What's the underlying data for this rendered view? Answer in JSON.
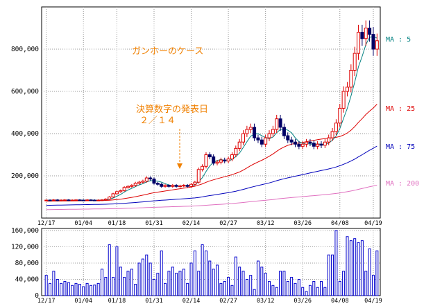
{
  "chart_data": {
    "type": "candlestick",
    "title": "ガンホーのケース",
    "annotation": {
      "lines": [
        "決算数字の発表日",
        "２／１４"
      ],
      "date": "02/14",
      "arrow": "dashed-down"
    },
    "xlabels": [
      "12/17",
      "01/04",
      "01/18",
      "01/31",
      "02/14",
      "02/27",
      "03/12",
      "03/26",
      "04/08",
      "04/19"
    ],
    "price_axis": {
      "ticks": [
        "200,000",
        "400,000",
        "600,000",
        "800,000"
      ],
      "ylim": [
        0,
        1000000
      ]
    },
    "volume_axis": {
      "ticks": [
        "0",
        "40000",
        "80000",
        "120000",
        "160000"
      ],
      "ylim": [
        0,
        165000
      ]
    },
    "moving_averages": [
      {
        "label": "MA : 5",
        "color": "#008080"
      },
      {
        "label": "MA : 25",
        "color": "#dd0000"
      },
      {
        "label": "MA : 75",
        "color": "#0000bb"
      },
      {
        "label": "MA : 200",
        "color": "#e070c0"
      }
    ],
    "closes": [
      85000,
      84000,
      86000,
      83000,
      85000,
      86000,
      84000,
      85000,
      86000,
      85000,
      84000,
      86000,
      85000,
      84000,
      85000,
      86000,
      90000,
      100000,
      115000,
      125000,
      130000,
      145000,
      150000,
      155000,
      165000,
      170000,
      175000,
      190000,
      185000,
      165000,
      160000,
      150000,
      155000,
      150000,
      155000,
      150000,
      152000,
      155000,
      150000,
      160000,
      170000,
      230000,
      245000,
      300000,
      290000,
      260000,
      265000,
      275000,
      270000,
      280000,
      300000,
      330000,
      360000,
      400000,
      420000,
      430000,
      380000,
      370000,
      350000,
      380000,
      400000,
      420000,
      470000,
      430000,
      390000,
      370000,
      360000,
      350000,
      340000,
      350000,
      360000,
      355000,
      340000,
      350000,
      345000,
      360000,
      380000,
      410000,
      450000,
      520000,
      600000,
      620000,
      700000,
      780000,
      880000,
      850000,
      900000,
      870000,
      800000,
      840000
    ],
    "volumes": [
      50000,
      30000,
      60000,
      40000,
      30000,
      35000,
      32000,
      25000,
      30000,
      28000,
      22000,
      30000,
      25000,
      26000,
      30000,
      65000,
      45000,
      125000,
      45000,
      120000,
      70000,
      45000,
      60000,
      65000,
      28000,
      80000,
      90000,
      100000,
      80000,
      40000,
      55000,
      110000,
      30000,
      60000,
      70000,
      55000,
      60000,
      65000,
      30000,
      80000,
      110000,
      60000,
      125000,
      110000,
      85000,
      65000,
      75000,
      30000,
      35000,
      45000,
      25000,
      95000,
      70000,
      60000,
      40000,
      50000,
      15000,
      85000,
      70000,
      55000,
      35000,
      25000,
      20000,
      60000,
      60000,
      35000,
      45000,
      30000,
      40000,
      20000,
      10000,
      25000,
      35000,
      20000,
      35000,
      20000,
      100000,
      100000,
      160000,
      35000,
      60000,
      145000,
      135000,
      140000,
      130000,
      135000,
      60000,
      115000,
      50000,
      110000
    ]
  }
}
